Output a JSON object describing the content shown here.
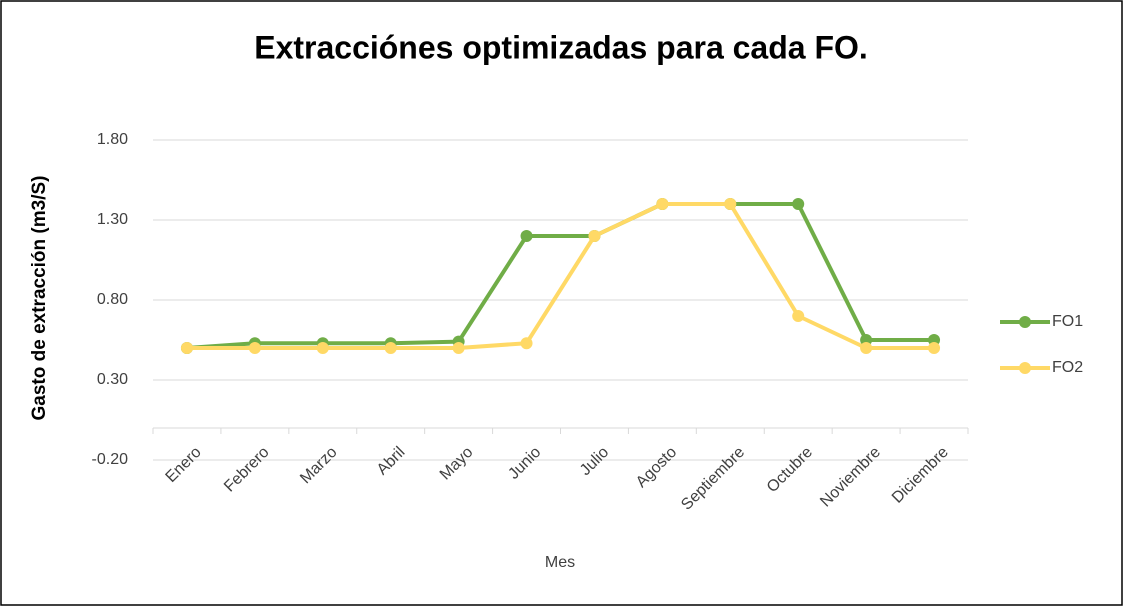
{
  "chart_data": {
    "type": "line",
    "title": "Extracciónes optimizadas para cada FO.",
    "x_label": "Mes",
    "y_label": "Gasto de extracción (m3/S)",
    "categories": [
      "Enero",
      "Febrero",
      "Marzo",
      "Abril",
      "Mayo",
      "Junio",
      "Julio",
      "Agosto",
      "Septiembre",
      "Octubre",
      "Noviembre",
      "Diciembre"
    ],
    "series": [
      {
        "name": "FO1",
        "color": "#70ad47",
        "values": [
          0.5,
          0.53,
          0.53,
          0.53,
          0.54,
          1.2,
          1.2,
          1.4,
          1.4,
          1.4,
          0.55,
          0.55
        ]
      },
      {
        "name": "FO2",
        "color": "#ffd966",
        "values": [
          0.5,
          0.5,
          0.5,
          0.5,
          0.5,
          0.53,
          1.2,
          1.4,
          1.4,
          0.7,
          0.5,
          0.5
        ]
      }
    ],
    "ylim": [
      -0.2,
      2.0
    ],
    "yticks": [
      {
        "value": -0.2,
        "label": "-0.20"
      },
      {
        "value": 0.3,
        "label": "0.30"
      },
      {
        "value": 0.8,
        "label": "0.80"
      },
      {
        "value": 1.3,
        "label": "1.30"
      },
      {
        "value": 1.8,
        "label": "1.80"
      }
    ],
    "grid": true,
    "legend": "right"
  }
}
